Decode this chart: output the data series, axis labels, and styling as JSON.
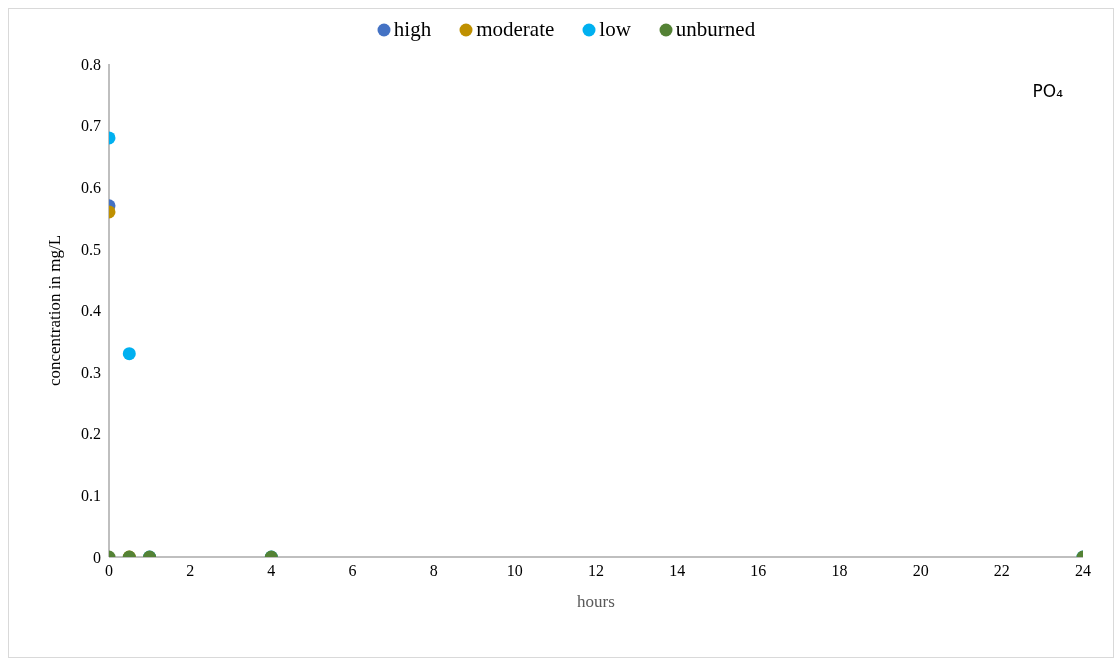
{
  "chart_data": {
    "type": "scatter",
    "xlabel": "hours",
    "ylabel": "concentration in mg/L",
    "annotations": [
      "PO₄"
    ],
    "series": [
      {
        "name": "high",
        "color": "#4472c4",
        "x": [
          0
        ],
        "values": [
          0.57
        ]
      },
      {
        "name": "moderate",
        "color": "#bf9000",
        "x": [
          0,
          0.5
        ],
        "values": [
          0.56,
          0
        ]
      },
      {
        "name": "low",
        "color": "#00b0f0",
        "x": [
          0,
          0.5,
          1,
          4,
          24
        ],
        "values": [
          0.68,
          0.33,
          0,
          0,
          0
        ]
      },
      {
        "name": "unburned",
        "color": "#548235",
        "x": [
          0,
          0.5,
          1,
          4,
          24
        ],
        "values": [
          0,
          0,
          0,
          0,
          0
        ]
      }
    ],
    "xlim": [
      0,
      24
    ],
    "xticks": [
      0,
      2,
      4,
      6,
      8,
      10,
      12,
      14,
      16,
      18,
      20,
      22,
      24
    ],
    "ylim": [
      0,
      0.8
    ],
    "yticks": [
      0,
      0.1,
      0.2,
      0.3,
      0.4,
      0.5,
      0.6,
      0.7,
      0.8
    ],
    "grid": false,
    "legend": "top",
    "marker": "circle"
  }
}
